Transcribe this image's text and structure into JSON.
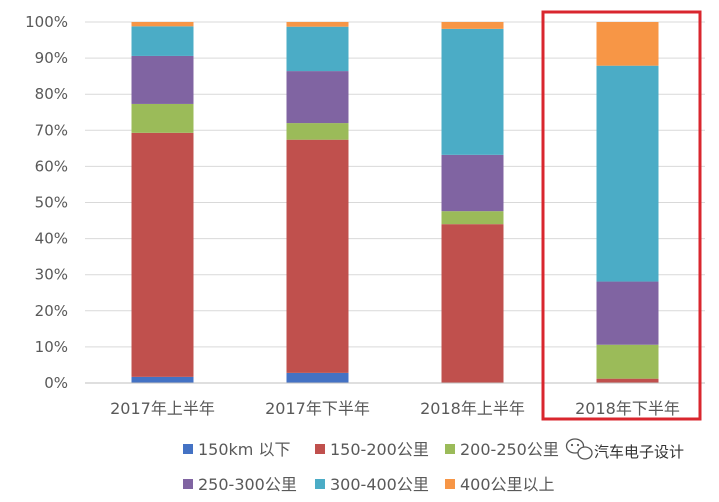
{
  "chart_data": {
    "type": "bar",
    "stacked": true,
    "categories": [
      "2017年上半年",
      "2017年下半年",
      "2018年上半年",
      "2018年下半年"
    ],
    "series": [
      {
        "name": "150km 以下",
        "color": "#4472C4",
        "values": [
          1.7,
          2.8,
          0.0,
          0.0
        ]
      },
      {
        "name": "150-200公里",
        "color": "#C0504D",
        "values": [
          67.6,
          64.6,
          44.0,
          1.2
        ]
      },
      {
        "name": "200-250公里",
        "color": "#9BBB59",
        "values": [
          8.0,
          4.6,
          3.6,
          9.4
        ]
      },
      {
        "name": "250-300公里",
        "color": "#8064A2",
        "values": [
          13.3,
          14.4,
          15.6,
          17.5
        ]
      },
      {
        "name": "300-400公里",
        "color": "#4BACC6",
        "values": [
          8.2,
          12.3,
          34.9,
          59.8
        ]
      },
      {
        "name": "400公里以上",
        "color": "#F79646",
        "values": [
          1.2,
          1.3,
          1.9,
          12.1
        ]
      }
    ],
    "yticks": [
      "0%",
      "10%",
      "20%",
      "30%",
      "40%",
      "50%",
      "60%",
      "70%",
      "80%",
      "90%",
      "100%"
    ],
    "ylim": [
      0,
      100
    ],
    "grid": true,
    "legend": "bottom",
    "highlight": {
      "category": "2018年下半年",
      "color": "#D9262E"
    }
  },
  "watermark": {
    "text": "汽车电子设计",
    "icon": "wechat-icon"
  }
}
